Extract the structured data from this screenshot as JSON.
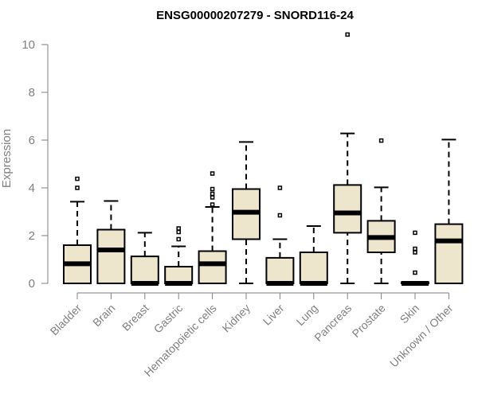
{
  "chart_data": {
    "type": "boxplot",
    "title": "ENSG00000207279 - SNORD116-24",
    "xlabel": "",
    "ylabel": "Expression",
    "ylim": [
      0,
      10.4
    ],
    "yticks": [
      0,
      2,
      4,
      6,
      8,
      10
    ],
    "grid": false,
    "legend": "none",
    "colors": {
      "box_fill": "#ede6cd",
      "stroke": "#000000",
      "axis": "#7f7f7f",
      "title": "#000000"
    },
    "categories": [
      "Bladder",
      "Brain",
      "Breast",
      "Gastric",
      "Hematopoietic cells",
      "Kidney",
      "Liver",
      "Lung",
      "Pancreas",
      "Prostate",
      "Skin",
      "Unknown / Other"
    ],
    "boxes": [
      {
        "label": "Bladder",
        "whisker_low": 0,
        "q1": 0,
        "median": 0.82,
        "q3": 1.6,
        "whisker_high": 3.42,
        "outliers": [
          4.0,
          4.38
        ]
      },
      {
        "label": "Brain",
        "whisker_low": 0,
        "q1": 0,
        "median": 1.4,
        "q3": 2.25,
        "whisker_high": 3.45,
        "outliers": []
      },
      {
        "label": "Breast",
        "whisker_low": 0,
        "q1": 0,
        "median": 0,
        "q3": 1.13,
        "whisker_high": 2.12,
        "outliers": []
      },
      {
        "label": "Gastric",
        "whisker_low": 0,
        "q1": 0,
        "median": 0,
        "q3": 0.7,
        "whisker_high": 1.55,
        "outliers": [
          1.85,
          2.15,
          2.3
        ]
      },
      {
        "label": "Hematopoietic cells",
        "whisker_low": 0,
        "q1": 0,
        "median": 0.82,
        "q3": 1.35,
        "whisker_high": 3.2,
        "outliers": [
          3.3,
          3.6,
          3.75,
          3.95,
          4.6
        ]
      },
      {
        "label": "Kidney",
        "whisker_low": 0,
        "q1": 1.85,
        "median": 2.98,
        "q3": 3.95,
        "whisker_high": 5.92,
        "outliers": []
      },
      {
        "label": "Liver",
        "whisker_low": 0,
        "q1": 0,
        "median": 0,
        "q3": 1.07,
        "whisker_high": 1.85,
        "outliers": [
          2.85,
          4.0
        ]
      },
      {
        "label": "Lung",
        "whisker_low": 0,
        "q1": 0,
        "median": 0,
        "q3": 1.3,
        "whisker_high": 2.4,
        "outliers": []
      },
      {
        "label": "Pancreas",
        "whisker_low": 0,
        "q1": 2.12,
        "median": 2.95,
        "q3": 4.12,
        "whisker_high": 6.28,
        "outliers": [
          10.42
        ]
      },
      {
        "label": "Prostate",
        "whisker_low": 0,
        "q1": 1.3,
        "median": 1.92,
        "q3": 2.62,
        "whisker_high": 4.02,
        "outliers": [
          5.98
        ]
      },
      {
        "label": "Skin",
        "whisker_low": 0,
        "q1": 0,
        "median": 0,
        "q3": 0.05,
        "whisker_high": 0.05,
        "outliers": [
          0.45,
          1.3,
          1.45,
          2.12
        ]
      },
      {
        "label": "Unknown / Other",
        "whisker_low": 0,
        "q1": 0,
        "median": 1.78,
        "q3": 2.48,
        "whisker_high": 6.02,
        "outliers": []
      }
    ]
  }
}
